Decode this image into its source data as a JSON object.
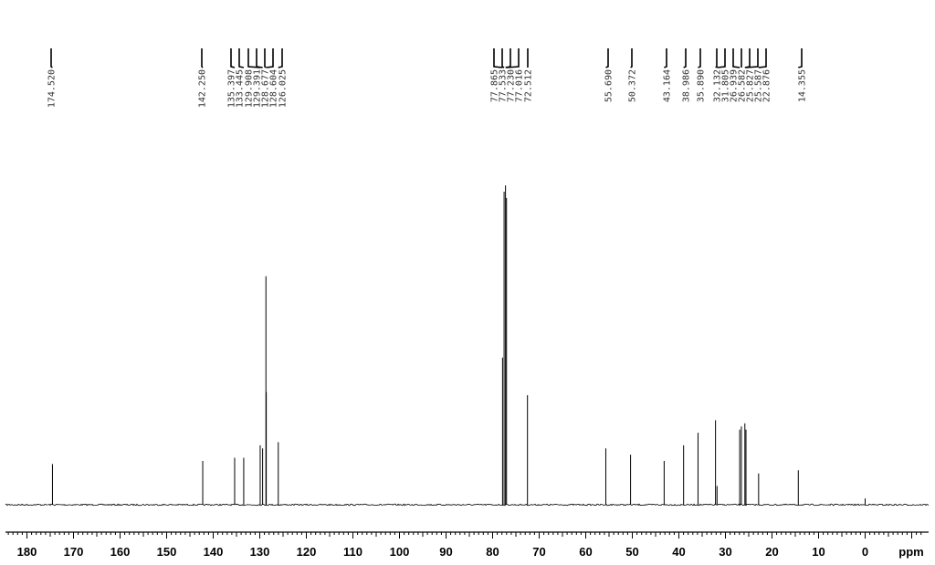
{
  "chart_data": {
    "type": "line",
    "title": "",
    "xlabel": "ppm",
    "ylabel": "",
    "xlim": [
      -12,
      186
    ],
    "x_reversed": true,
    "grid": false,
    "ticks": [
      "180",
      "170",
      "160",
      "150",
      "140",
      "130",
      "120",
      "110",
      "100",
      "90",
      "80",
      "70",
      "60",
      "50",
      "40",
      "30",
      "20",
      "10",
      "0"
    ],
    "peak_labels": [
      "174.520",
      "142.250",
      "135.397",
      "133.445",
      "129.908",
      "129.391",
      "128.677",
      "128.604",
      "126.025",
      "77.865",
      "77.533",
      "77.230",
      "77.016",
      "72.512",
      "55.690",
      "50.372",
      "43.164",
      "38.986",
      "35.890",
      "32.132",
      "31.805",
      "26.939",
      "26.582",
      "25.827",
      "25.587",
      "22.876",
      "14.355"
    ],
    "peaks": [
      {
        "ppm": 174.52,
        "intensity": 0.13
      },
      {
        "ppm": 142.25,
        "intensity": 0.14
      },
      {
        "ppm": 135.397,
        "intensity": 0.15
      },
      {
        "ppm": 133.445,
        "intensity": 0.15
      },
      {
        "ppm": 129.908,
        "intensity": 0.19
      },
      {
        "ppm": 129.391,
        "intensity": 0.18
      },
      {
        "ppm": 128.677,
        "intensity": 0.73
      },
      {
        "ppm": 128.604,
        "intensity": 0.36
      },
      {
        "ppm": 126.025,
        "intensity": 0.2
      },
      {
        "ppm": 77.865,
        "intensity": 0.47
      },
      {
        "ppm": 77.533,
        "intensity": 1.0
      },
      {
        "ppm": 77.23,
        "intensity": 1.02
      },
      {
        "ppm": 77.016,
        "intensity": 0.98
      },
      {
        "ppm": 72.512,
        "intensity": 0.35
      },
      {
        "ppm": 55.69,
        "intensity": 0.18
      },
      {
        "ppm": 50.372,
        "intensity": 0.16
      },
      {
        "ppm": 43.164,
        "intensity": 0.14
      },
      {
        "ppm": 38.986,
        "intensity": 0.19
      },
      {
        "ppm": 35.89,
        "intensity": 0.23
      },
      {
        "ppm": 32.132,
        "intensity": 0.27
      },
      {
        "ppm": 31.805,
        "intensity": 0.06
      },
      {
        "ppm": 26.939,
        "intensity": 0.24
      },
      {
        "ppm": 26.582,
        "intensity": 0.25
      },
      {
        "ppm": 25.827,
        "intensity": 0.26
      },
      {
        "ppm": 25.587,
        "intensity": 0.24
      },
      {
        "ppm": 22.876,
        "intensity": 0.1
      },
      {
        "ppm": 14.355,
        "intensity": 0.11
      },
      {
        "ppm": 0.0,
        "intensity": 0.02
      }
    ]
  },
  "colors": {
    "trace": "#000000",
    "label_line": "#000000",
    "background": "#ffffff"
  }
}
